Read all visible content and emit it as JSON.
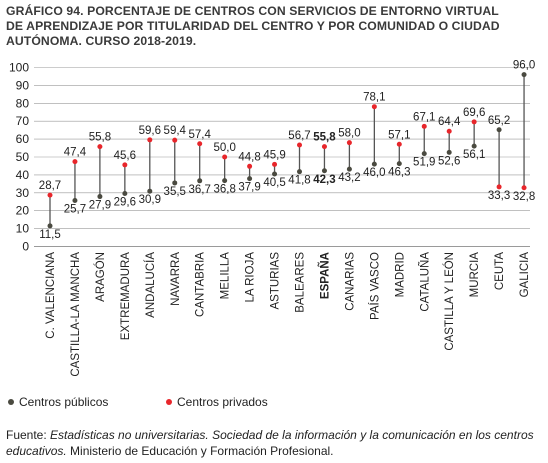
{
  "title_lines": [
    "GRÁFICO 94. PORCENTAJE DE CENTROS CON SERVICIOS DE ENTORNO VIRTUAL",
    "DE APRENDIZAJE POR TITULARIDAD DEL CENTRO Y POR COMUNIDAD O CIUDAD",
    "AUTÓNOMA. CURSO 2018-2019."
  ],
  "legend": {
    "public_label": "Centros públicos",
    "private_label": "Centros privados"
  },
  "source": {
    "prefix": "Fuente: ",
    "italic": "Estadísticas no universitarias. Sociedad de la información y la comunicación en los centros educativos.",
    "suffix": " Ministerio de Educación y Formación Profesional."
  },
  "colors": {
    "public": "#4a4a40",
    "private": "#e8262b",
    "line": "#555555",
    "grid": "#9a9a9a"
  },
  "chart_data": {
    "type": "dot-range",
    "ylim": [
      0,
      100
    ],
    "yticks": [
      0,
      10,
      20,
      30,
      40,
      50,
      60,
      70,
      80,
      90,
      100
    ],
    "grid": true,
    "legend_position": "bottom-left",
    "categories": [
      "C. VALENCIANA",
      "CASTILLA-LA MANCHA",
      "ARAGÓN",
      "EXTREMADURA",
      "ANDALUCÍA",
      "NAVARRA",
      "CANTABRIA",
      "MELILLA",
      "LA RIOJA",
      "ASTURIAS",
      "BALEARES",
      "ESPAÑA",
      "CANARIAS",
      "PAÍS VASCO",
      "MADRID",
      "CATALUÑA",
      "CASTILLA Y LEÓN",
      "MURCIA",
      "CEUTA",
      "GALICIA"
    ],
    "highlight": "ESPAÑA",
    "series": [
      {
        "name": "Centros públicos",
        "values": [
          11.5,
          25.7,
          27.9,
          29.6,
          30.9,
          35.5,
          36.7,
          36.8,
          37.9,
          40.5,
          41.8,
          42.3,
          43.2,
          46.0,
          46.3,
          51.9,
          52.6,
          56.1,
          65.2,
          96.0
        ],
        "labels": [
          "11,5",
          "25,7",
          "27,9",
          "29,6",
          "30,9",
          "35,5",
          "36,7",
          "36,8",
          "37,9",
          "40,5",
          "41,8",
          "42,3",
          "43,2",
          "46,0",
          "46,3",
          "51,9",
          "52,6",
          "56,1",
          "65,2",
          "96,0"
        ]
      },
      {
        "name": "Centros privados",
        "values": [
          28.7,
          47.4,
          55.8,
          45.6,
          59.6,
          59.4,
          57.4,
          50.0,
          44.8,
          45.9,
          56.7,
          55.8,
          58.0,
          78.1,
          57.1,
          67.1,
          64.4,
          69.6,
          33.3,
          32.8
        ],
        "labels": [
          "28,7",
          "47,4",
          "55,8",
          "45,6",
          "59,6",
          "59,4",
          "57,4",
          "50,0",
          "44,8",
          "45,9",
          "56,7",
          "55,8",
          "58,0",
          "78,1",
          "57,1",
          "67,1",
          "64,4",
          "69,6",
          "33,3",
          "32,8"
        ]
      }
    ]
  }
}
